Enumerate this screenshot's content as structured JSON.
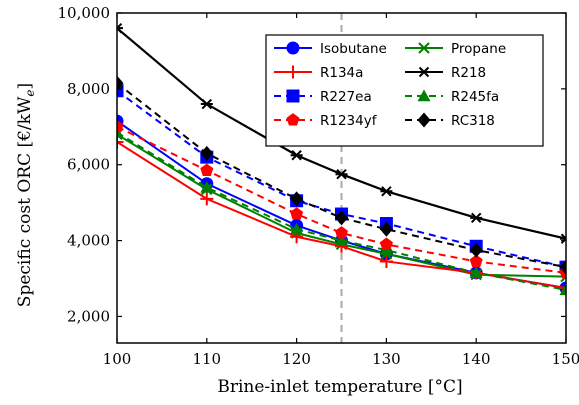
{
  "chart_data": {
    "type": "line",
    "xlabel": "Brine-inlet temperature [°C]",
    "ylabel": "Specific cost ORC [€/kW",
    "ylabel_sub": "e",
    "ylabel_tail": "]",
    "x": [
      100,
      110,
      120,
      125,
      130,
      140,
      150
    ],
    "xlim": [
      100,
      150
    ],
    "ylim": [
      1300,
      10000
    ],
    "xticks": [
      100,
      110,
      120,
      130,
      140,
      150
    ],
    "xtick_labels": [
      "100",
      "110",
      "120",
      "130",
      "140",
      "150"
    ],
    "yticks": [
      2000,
      4000,
      6000,
      8000,
      10000
    ],
    "ytick_labels": [
      "2,000",
      "4,000",
      "6,000",
      "8,000",
      "10,000"
    ],
    "vline": {
      "x": 125,
      "color": "#aaaaaa"
    },
    "legend": {
      "placement": "top-right",
      "columns": 2
    },
    "series": [
      {
        "name": "Isobutane",
        "color": "#0000ff",
        "dash": "solid",
        "marker": "circle",
        "values": [
          7150,
          5500,
          4400,
          4000,
          3650,
          3150,
          2750
        ]
      },
      {
        "name": "Propane",
        "color": "#008000",
        "dash": "solid",
        "marker": "x",
        "values": [
          6800,
          5350,
          4200,
          3900,
          3650,
          3100,
          3050
        ]
      },
      {
        "name": "R134a",
        "color": "#ff0000",
        "dash": "solid",
        "marker": "plus",
        "values": [
          6600,
          5100,
          4100,
          3850,
          3450,
          3150,
          2750
        ]
      },
      {
        "name": "R218",
        "color": "#000000",
        "dash": "solid",
        "marker": "star",
        "values": [
          9600,
          7600,
          6250,
          5750,
          5300,
          4600,
          4050
        ]
      },
      {
        "name": "R227ea",
        "color": "#0000ff",
        "dash": "dashed",
        "marker": "square",
        "values": [
          7950,
          6200,
          5050,
          4700,
          4450,
          3850,
          3300
        ]
      },
      {
        "name": "R245fa",
        "color": "#008000",
        "dash": "dashed",
        "marker": "triangle",
        "values": [
          6850,
          5400,
          4300,
          4000,
          3750,
          3150,
          2700
        ]
      },
      {
        "name": "R1234yf",
        "color": "#ff0000",
        "dash": "dashed",
        "marker": "pentagon",
        "values": [
          7000,
          5850,
          4700,
          4200,
          3900,
          3450,
          3150
        ]
      },
      {
        "name": "RC318",
        "color": "#000000",
        "dash": "dashed",
        "marker": "diamond",
        "values": [
          8150,
          6300,
          5100,
          4600,
          4300,
          3750,
          3300
        ]
      }
    ]
  }
}
